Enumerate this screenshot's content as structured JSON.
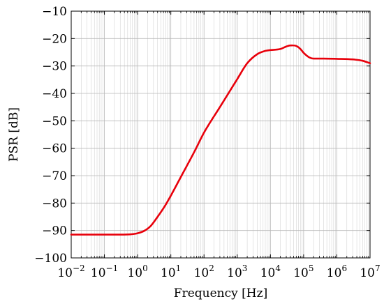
{
  "chart_data": {
    "type": "line",
    "title": "",
    "xlabel": "Frequency [Hz]",
    "ylabel": "PSR [dB]",
    "xscale": "log",
    "xlim": [
      0.01,
      10000000
    ],
    "ylim": [
      -100,
      -10
    ],
    "grid": true,
    "x_ticks": [
      {
        "base": "10",
        "exp": "−2"
      },
      {
        "base": "10",
        "exp": "−1"
      },
      {
        "base": "10",
        "exp": "0"
      },
      {
        "base": "10",
        "exp": "1"
      },
      {
        "base": "10",
        "exp": "2"
      },
      {
        "base": "10",
        "exp": "3"
      },
      {
        "base": "10",
        "exp": "4"
      },
      {
        "base": "10",
        "exp": "5"
      },
      {
        "base": "10",
        "exp": "6"
      },
      {
        "base": "10",
        "exp": "7"
      }
    ],
    "y_ticks": [
      "−10",
      "−20",
      "−30",
      "−40",
      "−50",
      "−60",
      "−70",
      "−80",
      "−90",
      "−100"
    ],
    "series": [
      {
        "color": "#e8000b",
        "x": [
          0.01,
          0.03,
          0.1,
          0.3,
          0.6,
          1,
          1.6,
          2.5,
          4,
          6.3,
          10,
          20,
          50,
          100,
          300,
          1000,
          2000,
          4000,
          7000,
          10000,
          20000,
          30000,
          40000,
          60000,
          80000,
          100000,
          150000,
          200000,
          400000,
          1000000,
          3000000,
          6000000,
          10000000
        ],
        "y": [
          -91.5,
          -91.5,
          -91.5,
          -91.5,
          -91.4,
          -91.0,
          -90.1,
          -88.3,
          -85.0,
          -81.5,
          -77.3,
          -70.5,
          -61.5,
          -54.3,
          -45.0,
          -34.8,
          -29.0,
          -25.7,
          -24.5,
          -24.2,
          -23.8,
          -22.9,
          -22.5,
          -22.7,
          -23.8,
          -25.2,
          -26.9,
          -27.3,
          -27.3,
          -27.4,
          -27.6,
          -28.1,
          -29.0
        ]
      }
    ]
  }
}
